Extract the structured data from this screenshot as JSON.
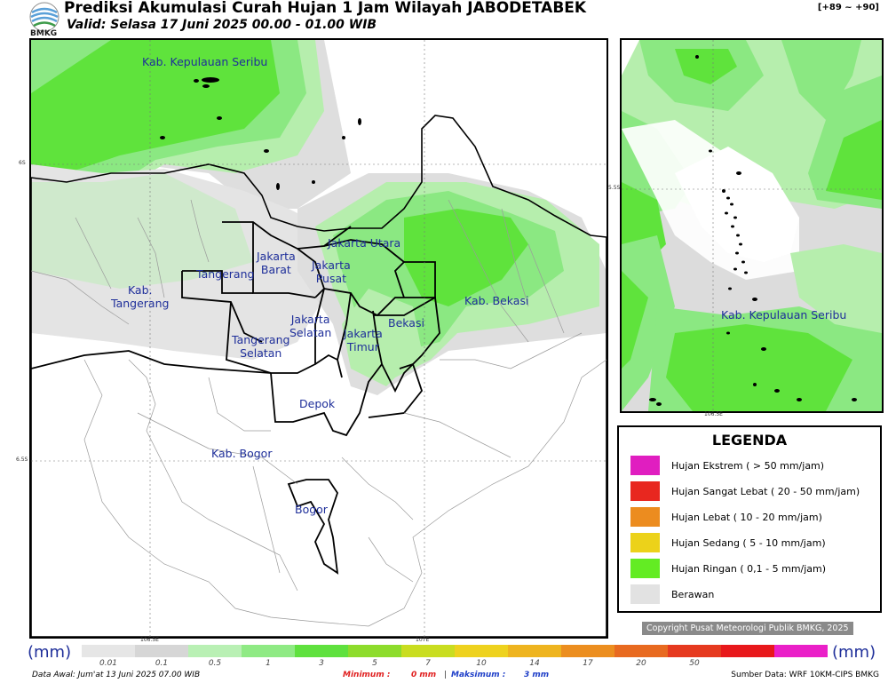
{
  "header": {
    "logo_text": "BMKG",
    "title": "Prediksi Akumulasi Curah Hujan 1 Jam Wilayah JABODETABEK",
    "valid": "Valid: Selasa 17 Juni 2025 00.00 - 01.00 WIB",
    "code": "[+89 ~ +90]"
  },
  "main_map": {
    "labels": [
      {
        "id": "kepseribu",
        "text": "Kab. Kepulauan Seribu"
      },
      {
        "id": "jakut",
        "text": "Jakarta Utara"
      },
      {
        "id": "jakbar",
        "text": "Jakarta\nBarat"
      },
      {
        "id": "jakpus",
        "text": "Jakarta\nPusat"
      },
      {
        "id": "tangerang",
        "text": "Tangerang"
      },
      {
        "id": "kabtangerang",
        "text": "Kab.\nTangerang"
      },
      {
        "id": "jaksel",
        "text": "Jakarta\nSelatan"
      },
      {
        "id": "jaktim",
        "text": "Jakarta\nTimur"
      },
      {
        "id": "bekasi",
        "text": "Bekasi"
      },
      {
        "id": "kabbekasi",
        "text": "Kab. Bekasi"
      },
      {
        "id": "tangsel",
        "text": "Tangerang\nSelatan"
      },
      {
        "id": "depok",
        "text": "Depok"
      },
      {
        "id": "kabbogor",
        "text": "Kab. Bogor"
      },
      {
        "id": "bogor",
        "text": "Bogor"
      }
    ],
    "lat_ticks": [
      "6S",
      "6.5S"
    ],
    "lon_ticks": [
      "106.5E",
      "107E"
    ]
  },
  "inset_map": {
    "label": "Kab. Kepulauan Seribu",
    "lat_tick": "5.5S",
    "lon_tick": "106.5E"
  },
  "legend": {
    "title": "LEGENDA",
    "items": [
      {
        "label": "Hujan Ekstrem ( > 50 mm/jam)",
        "color": "#e01ec0"
      },
      {
        "label": "Hujan Sangat Lebat ( 20 - 50 mm/jam)",
        "color": "#e8271f"
      },
      {
        "label": "Hujan Lebat ( 10 - 20 mm/jam)",
        "color": "#ec8c1f"
      },
      {
        "label": "Hujan Sedang ( 5 - 10 mm/jam)",
        "color": "#ecd21a"
      },
      {
        "label": "Hujan Ringan ( 0,1 - 5 mm/jam)",
        "color": "#63ec23"
      },
      {
        "label": "Berawan",
        "color": "#e2e2e2"
      }
    ]
  },
  "copyright": "Copyright Pusat Meteorologi Publik BMKG, 2025",
  "colorbar": {
    "unit": "(mm)",
    "ticks": [
      "0.01",
      "0.1",
      "0.5",
      "1",
      "3",
      "5",
      "7",
      "10",
      "14",
      "17",
      "20",
      "50"
    ],
    "colors": [
      "#e6e6e6",
      "#d6d6d6",
      "#b9f0b4",
      "#8fea84",
      "#5fe13e",
      "#8ddc2c",
      "#c9dd20",
      "#eed21e",
      "#eeb41f",
      "#ec8e1f",
      "#e86a20",
      "#e63a1f",
      "#e8181b",
      "#ea20c8"
    ]
  },
  "footer": {
    "data_awal": "Data Awal: Jum'at 13 Juni 2025 07.00 WIB",
    "minimum_label": "Minimum :",
    "minimum_value": "0 mm",
    "sep": "|",
    "maximum_label": "Maksimum :",
    "maximum_value": "3 mm",
    "sumber": "Sumber Data: WRF 10KM-CIPS BMKG"
  }
}
